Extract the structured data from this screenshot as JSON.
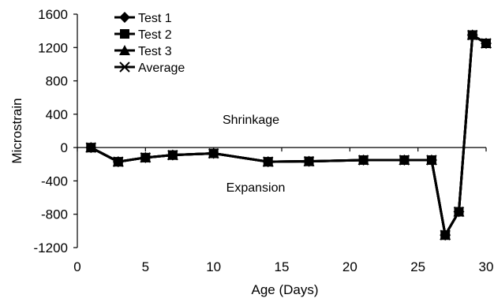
{
  "chart_data": {
    "type": "line",
    "xlabel": "Age (Days)",
    "ylabel": "Microstrain",
    "xlim": [
      0,
      30
    ],
    "ylim": [
      -1200,
      1600
    ],
    "xticks": [
      0,
      5,
      10,
      15,
      20,
      25,
      30
    ],
    "yticks": [
      -1200,
      -800,
      -400,
      0,
      400,
      800,
      1200,
      1600
    ],
    "grid": false,
    "legend_position": "top-left",
    "annotations": [
      "Shrinkage",
      "Expansion"
    ],
    "series": [
      {
        "name": "Test 1",
        "marker": "diamond",
        "x": [
          1,
          3,
          5,
          7,
          10,
          14,
          17,
          21,
          24,
          26,
          27,
          28,
          29,
          30
        ],
        "values": [
          0,
          -170,
          -120,
          -90,
          -70,
          -170,
          -165,
          -150,
          -150,
          -150,
          -1050,
          -770,
          1350,
          1250
        ]
      },
      {
        "name": "Test 2",
        "marker": "square",
        "x": [
          1,
          3,
          5,
          7,
          10,
          14,
          17,
          21,
          24,
          26,
          27,
          28,
          29,
          30
        ],
        "values": [
          0,
          -170,
          -120,
          -90,
          -70,
          -170,
          -165,
          -150,
          -150,
          -150,
          -1050,
          -770,
          1350,
          1250
        ]
      },
      {
        "name": "Test 3",
        "marker": "triangle",
        "x": [
          1,
          3,
          5,
          7,
          10,
          14,
          17,
          21,
          24,
          26,
          27,
          28,
          29,
          30
        ],
        "values": [
          0,
          -170,
          -120,
          -90,
          -70,
          -170,
          -165,
          -150,
          -150,
          -150,
          -1050,
          -770,
          1350,
          1250
        ]
      },
      {
        "name": "Average",
        "marker": "x",
        "x": [
          1,
          3,
          5,
          7,
          10,
          14,
          17,
          21,
          24,
          26,
          27,
          28,
          29,
          30
        ],
        "values": [
          0,
          -170,
          -120,
          -90,
          -70,
          -170,
          -165,
          -150,
          -150,
          -150,
          -1050,
          -770,
          1350,
          1250
        ]
      }
    ],
    "colors": {
      "line": "#000000",
      "axis": "#000000"
    }
  }
}
